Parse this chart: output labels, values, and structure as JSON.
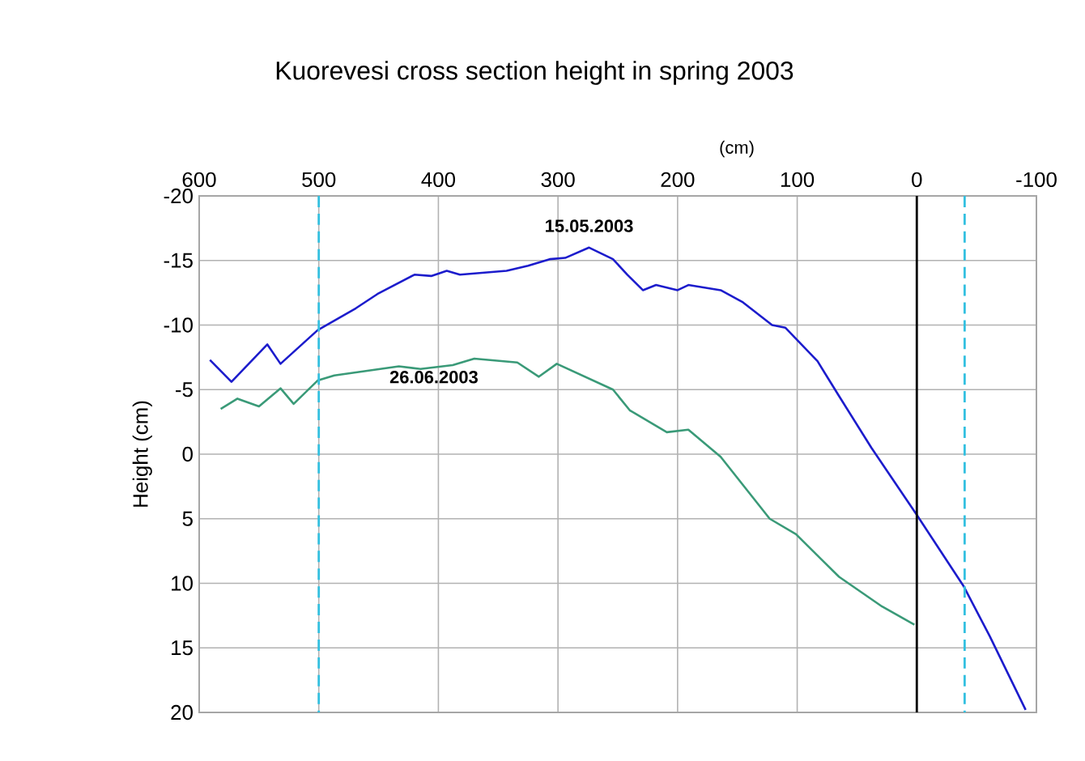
{
  "chart_data": {
    "type": "line",
    "title": "Kuorevesi cross section height in spring 2003",
    "xlabel": "(cm)",
    "ylabel": "Height (cm)",
    "xlim": [
      600,
      -100
    ],
    "xticks": [
      600,
      500,
      400,
      300,
      200,
      100,
      0,
      -100
    ],
    "ylim": [
      20,
      -20
    ],
    "yticks": [
      -20,
      -15,
      -10,
      -5,
      0,
      5,
      10,
      15,
      20
    ],
    "grid": true,
    "marker": "none",
    "line_style": "solid",
    "series": [
      {
        "name": "15.05.2003",
        "color": "#1c1ccc",
        "x": [
          591,
          573,
          543,
          532,
          501,
          469,
          451,
          420,
          406,
          393,
          382,
          343,
          325,
          307,
          294,
          274,
          254,
          242,
          229,
          218,
          200,
          191,
          164,
          146,
          121,
          110,
          83,
          65,
          38,
          0,
          -39,
          -61,
          -91
        ],
        "values": [
          -7.3,
          -5.6,
          -8.5,
          -7.0,
          -9.6,
          -11.3,
          -12.4,
          -13.9,
          -13.8,
          -14.2,
          -13.9,
          -14.2,
          -14.6,
          -15.1,
          -15.2,
          -16.0,
          -15.1,
          -13.9,
          -12.7,
          -13.1,
          -12.7,
          -13.1,
          -12.7,
          -11.8,
          -10.0,
          -9.8,
          -7.2,
          -4.5,
          -0.5,
          4.7,
          10.2,
          14.1,
          19.8
        ]
      },
      {
        "name": "26.06.2003",
        "color": "#3a9a78",
        "x": [
          582,
          568,
          550,
          532,
          521,
          501,
          487,
          433,
          415,
          388,
          370,
          334,
          316,
          301,
          254,
          240,
          209,
          191,
          164,
          123,
          101,
          65,
          29,
          2
        ],
        "values": [
          -3.5,
          -4.3,
          -3.7,
          -5.1,
          -3.9,
          -5.7,
          -6.1,
          -6.8,
          -6.6,
          -6.9,
          -7.4,
          -7.1,
          -6.0,
          -7.0,
          -5.0,
          -3.4,
          -1.7,
          -1.9,
          0.2,
          5.0,
          6.2,
          9.5,
          11.8,
          13.2
        ]
      }
    ],
    "ref_lines": [
      {
        "axis": "x",
        "value": 0,
        "color": "#000000",
        "line_style": "solid"
      },
      {
        "axis": "x",
        "value": 500,
        "color": "#33c0e0",
        "line_style": "dashed"
      },
      {
        "axis": "x",
        "value": -40,
        "color": "#33c0e0",
        "line_style": "dashed"
      }
    ]
  }
}
